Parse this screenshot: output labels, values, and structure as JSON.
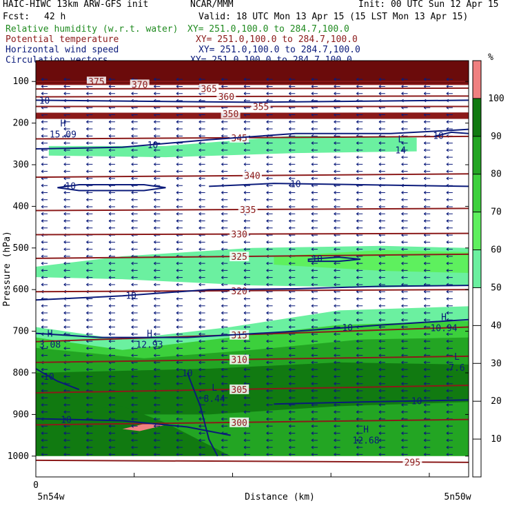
{
  "header": {
    "model": "HAIC-HIWC 13km ARW-GFS init",
    "org": "NCAR/MMM",
    "init": "Init: 00 UTC Sun 12 Apr 15",
    "fcst_label": "Fcst:",
    "fcst_value": "42 h",
    "valid": "Valid: 18 UTC Mon 13 Apr 15 (15 LST Mon 13 Apr 15)"
  },
  "fields": [
    {
      "name": "Relative humidity (w.r.t. water)",
      "xy": "XY= 251.0,100.0 to 284.7,100.0",
      "color": "#1f8a1f"
    },
    {
      "name": "Potential temperature",
      "xy": "XY= 251.0,100.0 to 284.7,100.0",
      "color": "#8b1a1a"
    },
    {
      "name": "Horizontal wind speed",
      "xy": "XY= 251.0,100.0 to 284.7,100.0",
      "color": "#0a1a7a"
    },
    {
      "name": "Circulation vectors",
      "xy": "XY= 251.0,100.0 to 284.7,100.0",
      "color": "#0a1a7a"
    }
  ],
  "chart_data": {
    "type": "heatmap",
    "ylabel": "Pressure (hPa)",
    "xlabel": "Distance (km)",
    "x_ticks": [
      {
        "value": 0,
        "label": "0"
      }
    ],
    "x_left_label": "5n54w",
    "x_right_label": "5n50w",
    "ylim": [
      1050,
      50
    ],
    "y_ticks": [
      100,
      200,
      300,
      400,
      500,
      600,
      700,
      800,
      900,
      1000
    ],
    "colorbar": {
      "unit": "%",
      "ticks": [
        10,
        20,
        30,
        40,
        50,
        60,
        70,
        80,
        90,
        100
      ],
      "bands": [
        {
          "from": 100,
          "to": 110,
          "color": "#f08080"
        },
        {
          "from": 90,
          "to": 100,
          "color": "#117a11"
        },
        {
          "from": 80,
          "to": 90,
          "color": "#23a523"
        },
        {
          "from": 70,
          "to": 80,
          "color": "#3cd03c"
        },
        {
          "from": 60,
          "to": 70,
          "color": "#5ef05e"
        },
        {
          "from": 50,
          "to": 60,
          "color": "#6bf0a0"
        }
      ]
    },
    "rh_regions": [
      {
        "x": [
          0,
          1
        ],
        "p": [
          [
            175,
            175
          ],
          [
            190,
            190
          ]
        ],
        "color": "#8b1a1a"
      },
      {
        "x": [
          0,
          1
        ],
        "p": [
          [
            50,
            50
          ],
          [
            108,
            108
          ]
        ],
        "color": "#6b0b0b"
      },
      {
        "x": [
          0.03,
          0.3,
          0.6,
          0.88,
          0.88,
          0.6,
          0.3,
          0.03
        ],
        "p": [
          255,
          255,
          230,
          235,
          268,
          272,
          282,
          278
        ],
        "color": "#6bf0a0",
        "closed": true
      },
      {
        "x": [
          0.0,
          0.2,
          0.5,
          0.8,
          1.0,
          1.0,
          0.8,
          0.5,
          0.2,
          0.0
        ],
        "p": [
          545,
          520,
          500,
          495,
          500,
          590,
          595,
          590,
          575,
          570
        ],
        "color": "#6bf0a0",
        "closed": true
      },
      {
        "x": [
          0.55,
          0.8,
          1.0,
          1.0,
          0.8,
          0.55
        ],
        "p": [
          520,
          505,
          510,
          560,
          555,
          540
        ],
        "color": "#5ef05e",
        "closed": true
      },
      {
        "x": [
          0.0,
          0.2,
          0.45,
          0.7,
          1.0,
          1.0,
          0.0
        ],
        "p": [
          690,
          720,
          690,
          650,
          640,
          1050,
          1050
        ],
        "color": "#6bf0a0",
        "closed": true
      },
      {
        "x": [
          0.0,
          0.2,
          0.45,
          0.7,
          1.0,
          1.0,
          0.0
        ],
        "p": [
          715,
          745,
          715,
          685,
          675,
          1050,
          1050
        ],
        "color": "#3cd03c",
        "closed": true
      },
      {
        "x": [
          0.0,
          0.25,
          0.5,
          0.75,
          1.0,
          1.0,
          0.0
        ],
        "p": [
          740,
          765,
          745,
          720,
          715,
          1050,
          1050
        ],
        "color": "#23a523",
        "closed": true
      },
      {
        "x": [
          0.0,
          0.4,
          0.7,
          1.0,
          1.0,
          0.7,
          0.4,
          0.0
        ],
        "p": [
          800,
          790,
          775,
          780,
          870,
          880,
          900,
          900
        ],
        "color": "#117a11",
        "closed": true
      },
      {
        "x": [
          0.0,
          0.2,
          0.3,
          0.45,
          0.25,
          0.0
        ],
        "p": [
          900,
          880,
          920,
          1000,
          1020,
          1000
        ],
        "color": "#117a11",
        "closed": true
      },
      {
        "x": [
          0.0,
          1.0,
          1.0,
          0.0
        ],
        "p": [
          1000,
          1000,
          1050,
          1050
        ],
        "color": "#ffffff",
        "closed": true
      },
      {
        "x": [
          0.2,
          0.26,
          0.3,
          0.24
        ],
        "p": [
          935,
          920,
          925,
          940
        ],
        "color": "#f08080",
        "closed": true
      }
    ],
    "theta_contours": [
      {
        "label": "375",
        "x": [
          0,
          1
        ],
        "p": [
          100,
          100
        ],
        "label_x": 0.14
      },
      {
        "label": "370",
        "x": [
          0,
          1
        ],
        "p": [
          107,
          107
        ],
        "label_x": 0.24
      },
      {
        "label": "365",
        "x": [
          0,
          1
        ],
        "p": [
          118,
          116
        ],
        "label_x": 0.4
      },
      {
        "label": "360",
        "x": [
          0,
          1
        ],
        "p": [
          137,
          135
        ],
        "label_x": 0.44
      },
      {
        "label": "355",
        "x": [
          0,
          1
        ],
        "p": [
          160,
          160
        ],
        "label_x": 0.52
      },
      {
        "label": "350",
        "x": [
          0,
          1
        ],
        "p": [
          178,
          176
        ],
        "label_x": 0.45
      },
      {
        "label": "345",
        "x": [
          0,
          1
        ],
        "p": [
          238,
          232
        ],
        "label_x": 0.47
      },
      {
        "label": "340",
        "x": [
          0,
          1
        ],
        "p": [
          330,
          322
        ],
        "label_x": 0.5
      },
      {
        "label": "335",
        "x": [
          0,
          1
        ],
        "p": [
          410,
          405
        ],
        "label_x": 0.49
      },
      {
        "label": "330",
        "x": [
          0,
          1
        ],
        "p": [
          468,
          465
        ],
        "label_x": 0.47
      },
      {
        "label": "325",
        "x": [
          0,
          1
        ],
        "p": [
          525,
          515
        ],
        "label_x": 0.47
      },
      {
        "label": "320",
        "x": [
          0,
          1
        ],
        "p": [
          605,
          600
        ],
        "label_x": 0.47
      },
      {
        "label": "315",
        "x": [
          0,
          1
        ],
        "p": [
          725,
          690
        ],
        "label_x": 0.47
      },
      {
        "label": "310",
        "x": [
          0,
          1
        ],
        "p": [
          775,
          760
        ],
        "label_x": 0.47
      },
      {
        "label": "305",
        "x": [
          0,
          1
        ],
        "p": [
          848,
          830
        ],
        "label_x": 0.47
      },
      {
        "label": "300",
        "x": [
          0,
          1
        ],
        "p": [
          925,
          912
        ],
        "label_x": 0.47
      },
      {
        "label": "295",
        "x": [
          0,
          1
        ],
        "p": [
          1010,
          1015
        ],
        "label_x": 0.87
      }
    ],
    "wind_contours": [
      {
        "label": "10",
        "x": [
          0.0,
          0.5,
          1.0
        ],
        "p": [
          145,
          150,
          145
        ],
        "label_x": 0.02
      },
      {
        "label": "10",
        "x": [
          0.0,
          0.2,
          0.4,
          0.6,
          0.82,
          0.95,
          1.0
        ],
        "p": [
          262,
          258,
          240,
          225,
          225,
          218,
          215
        ],
        "label_x": 0.27
      },
      {
        "label": "10",
        "x": [
          0.92,
          0.96,
          1.0
        ],
        "p": [
          232,
          222,
          225
        ],
        "label_x": 0.93
      },
      {
        "label": "10",
        "x": [
          0.05,
          0.1,
          0.25,
          0.3,
          0.25,
          0.1,
          0.05
        ],
        "p": [
          355,
          348,
          348,
          355,
          362,
          362,
          355
        ],
        "label_x": 0.08,
        "closed": true
      },
      {
        "label": "10",
        "x": [
          0.4,
          0.55,
          0.75,
          1.0
        ],
        "p": [
          352,
          345,
          348,
          352
        ],
        "label_x": 0.6
      },
      {
        "label": "10",
        "x": [
          0.63,
          0.7,
          0.75,
          0.7,
          0.63
        ],
        "p": [
          527,
          522,
          527,
          532,
          532
        ],
        "label_x": 0.65,
        "closed": true
      },
      {
        "label": "10",
        "x": [
          0.0,
          0.2,
          0.4,
          0.6,
          0.8,
          1.0
        ],
        "p": [
          625,
          615,
          600,
          598,
          592,
          590
        ],
        "label_x": 0.22
      },
      {
        "label": "10",
        "x": [
          0.0,
          0.15,
          0.35,
          0.6,
          0.8,
          1.0
        ],
        "p": [
          705,
          715,
          715,
          700,
          685,
          672
        ],
        "label_x": 0.72
      },
      {
        "label": "10",
        "x": [
          0.0,
          0.05,
          0.1
        ],
        "p": [
          790,
          820,
          840
        ],
        "label_x": 0.03
      },
      {
        "label": "10",
        "x": [
          0.0,
          0.2,
          0.35,
          0.45
        ],
        "p": [
          910,
          915,
          930,
          950
        ],
        "label_x": 0.07
      },
      {
        "label": "10",
        "x": [
          0.35,
          0.38,
          0.4,
          0.42
        ],
        "p": [
          800,
          880,
          960,
          1000
        ],
        "label_x": 0.9
      },
      {
        "label": "10",
        "x": [
          0.55,
          0.75,
          1.0
        ],
        "p": [
          875,
          870,
          865
        ],
        "label_x": 0.88
      }
    ],
    "extrema": [
      {
        "type": "H",
        "value": "15.09",
        "x": 0.05,
        "p": 215
      },
      {
        "type": "L",
        "value": "14",
        "x": 0.83,
        "p": 253
      },
      {
        "type": "H",
        "value": "10.94",
        "x": 0.93,
        "p": 680
      },
      {
        "type": "H",
        "value": "3.08",
        "x": 0.02,
        "p": 720
      },
      {
        "type": "H",
        "value": "12.93",
        "x": 0.25,
        "p": 720
      },
      {
        "type": "L",
        "value": "7.6",
        "x": 0.96,
        "p": 775
      },
      {
        "type": "L",
        "value": "8.44",
        "x": 0.4,
        "p": 850
      },
      {
        "type": "H",
        "value": "12.68",
        "x": 0.75,
        "p": 950
      }
    ],
    "vectors": {
      "note": "predominantly easterly (right-to-left) circulation vectors across the section",
      "direction": "westward"
    }
  }
}
